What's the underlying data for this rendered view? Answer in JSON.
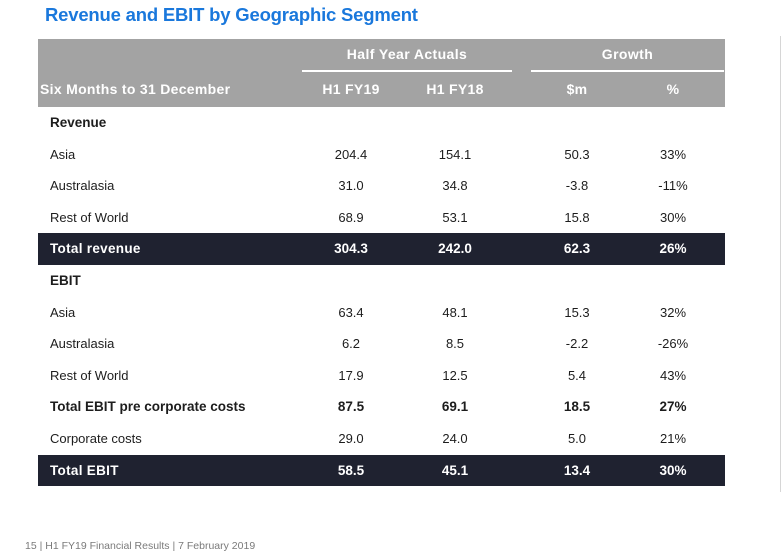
{
  "title": "Revenue and EBIT by Geographic Segment",
  "header": {
    "group_actuals": "Half Year Actuals",
    "group_growth": "Growth",
    "row_label": "Six Months to 31 December",
    "col_h1fy19": "H1 FY19",
    "col_h1fy18": "H1 FY18",
    "col_sm": "$m",
    "col_pct": "%"
  },
  "rows": [
    {
      "label": "Revenue",
      "kind": "section"
    },
    {
      "label": "Asia",
      "h1fy19": "204.4",
      "h1fy18": "154.1",
      "sm": "50.3",
      "pct": "33%",
      "kind": "normal"
    },
    {
      "label": "Australasia",
      "h1fy19": "31.0",
      "h1fy18": "34.8",
      "sm": "-3.8",
      "pct": "-11%",
      "kind": "normal"
    },
    {
      "label": "Rest of World",
      "h1fy19": "68.9",
      "h1fy18": "53.1",
      "sm": "15.8",
      "pct": "30%",
      "kind": "normal"
    },
    {
      "label": "Total revenue",
      "h1fy19": "304.3",
      "h1fy18": "242.0",
      "sm": "62.3",
      "pct": "26%",
      "kind": "dark"
    },
    {
      "label": "EBIT",
      "kind": "section"
    },
    {
      "label": "Asia",
      "h1fy19": "63.4",
      "h1fy18": "48.1",
      "sm": "15.3",
      "pct": "32%",
      "kind": "normal"
    },
    {
      "label": "Australasia",
      "h1fy19": "6.2",
      "h1fy18": "8.5",
      "sm": "-2.2",
      "pct": "-26%",
      "kind": "normal"
    },
    {
      "label": "Rest of World",
      "h1fy19": "17.9",
      "h1fy18": "12.5",
      "sm": "5.4",
      "pct": "43%",
      "kind": "normal"
    },
    {
      "label": "Total EBIT pre corporate costs",
      "h1fy19": "87.5",
      "h1fy18": "69.1",
      "sm": "18.5",
      "pct": "27%",
      "kind": "bold"
    },
    {
      "label": "Corporate costs",
      "h1fy19": "29.0",
      "h1fy18": "24.0",
      "sm": "5.0",
      "pct": "21%",
      "kind": "normal"
    },
    {
      "label": "Total EBIT",
      "h1fy19": "58.5",
      "h1fy18": "45.1",
      "sm": "13.4",
      "pct": "30%",
      "kind": "dark"
    }
  ],
  "footer": "15  |  H1 FY19 Financial Results  | 7 February 2019",
  "colors": {
    "title": "#1a78dc",
    "header_bg": "#a3a3a3",
    "total_row_bg": "#1f2230"
  }
}
